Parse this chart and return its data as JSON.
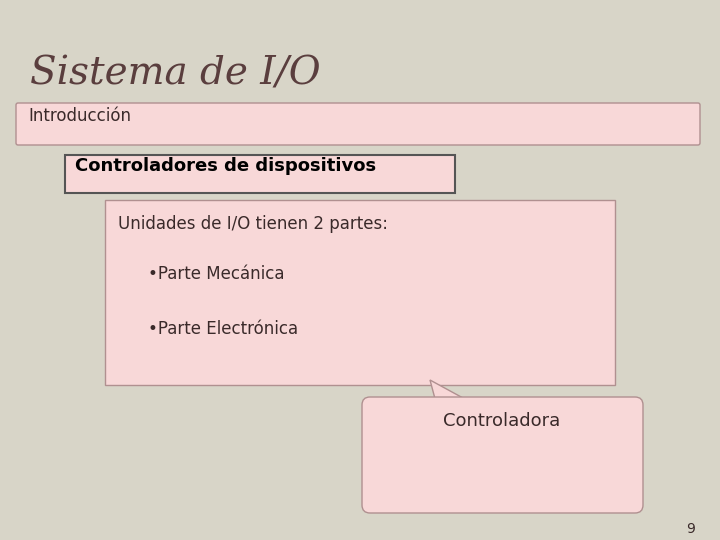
{
  "title": "Sistema de I/O",
  "title_color": "#5a3e3e",
  "title_fontsize": 28,
  "bg_color": "#d8d5c8",
  "box_color": "#f8d8d8",
  "box_edge_color": "#b09090",
  "intro_label": "Introducción",
  "ctrl_label": "Controladores de dispositivos",
  "content_title": "Unidades de I/O tienen 2 partes:",
  "bullet1": "•Parte Mecánica",
  "bullet2": "•Parte Electrónica",
  "callout_label": "Controladora",
  "page_num": "9",
  "text_color": "#3a2a2a",
  "content_fontsize": 12,
  "ctrl_fontsize": 13,
  "intro_fontsize": 12
}
